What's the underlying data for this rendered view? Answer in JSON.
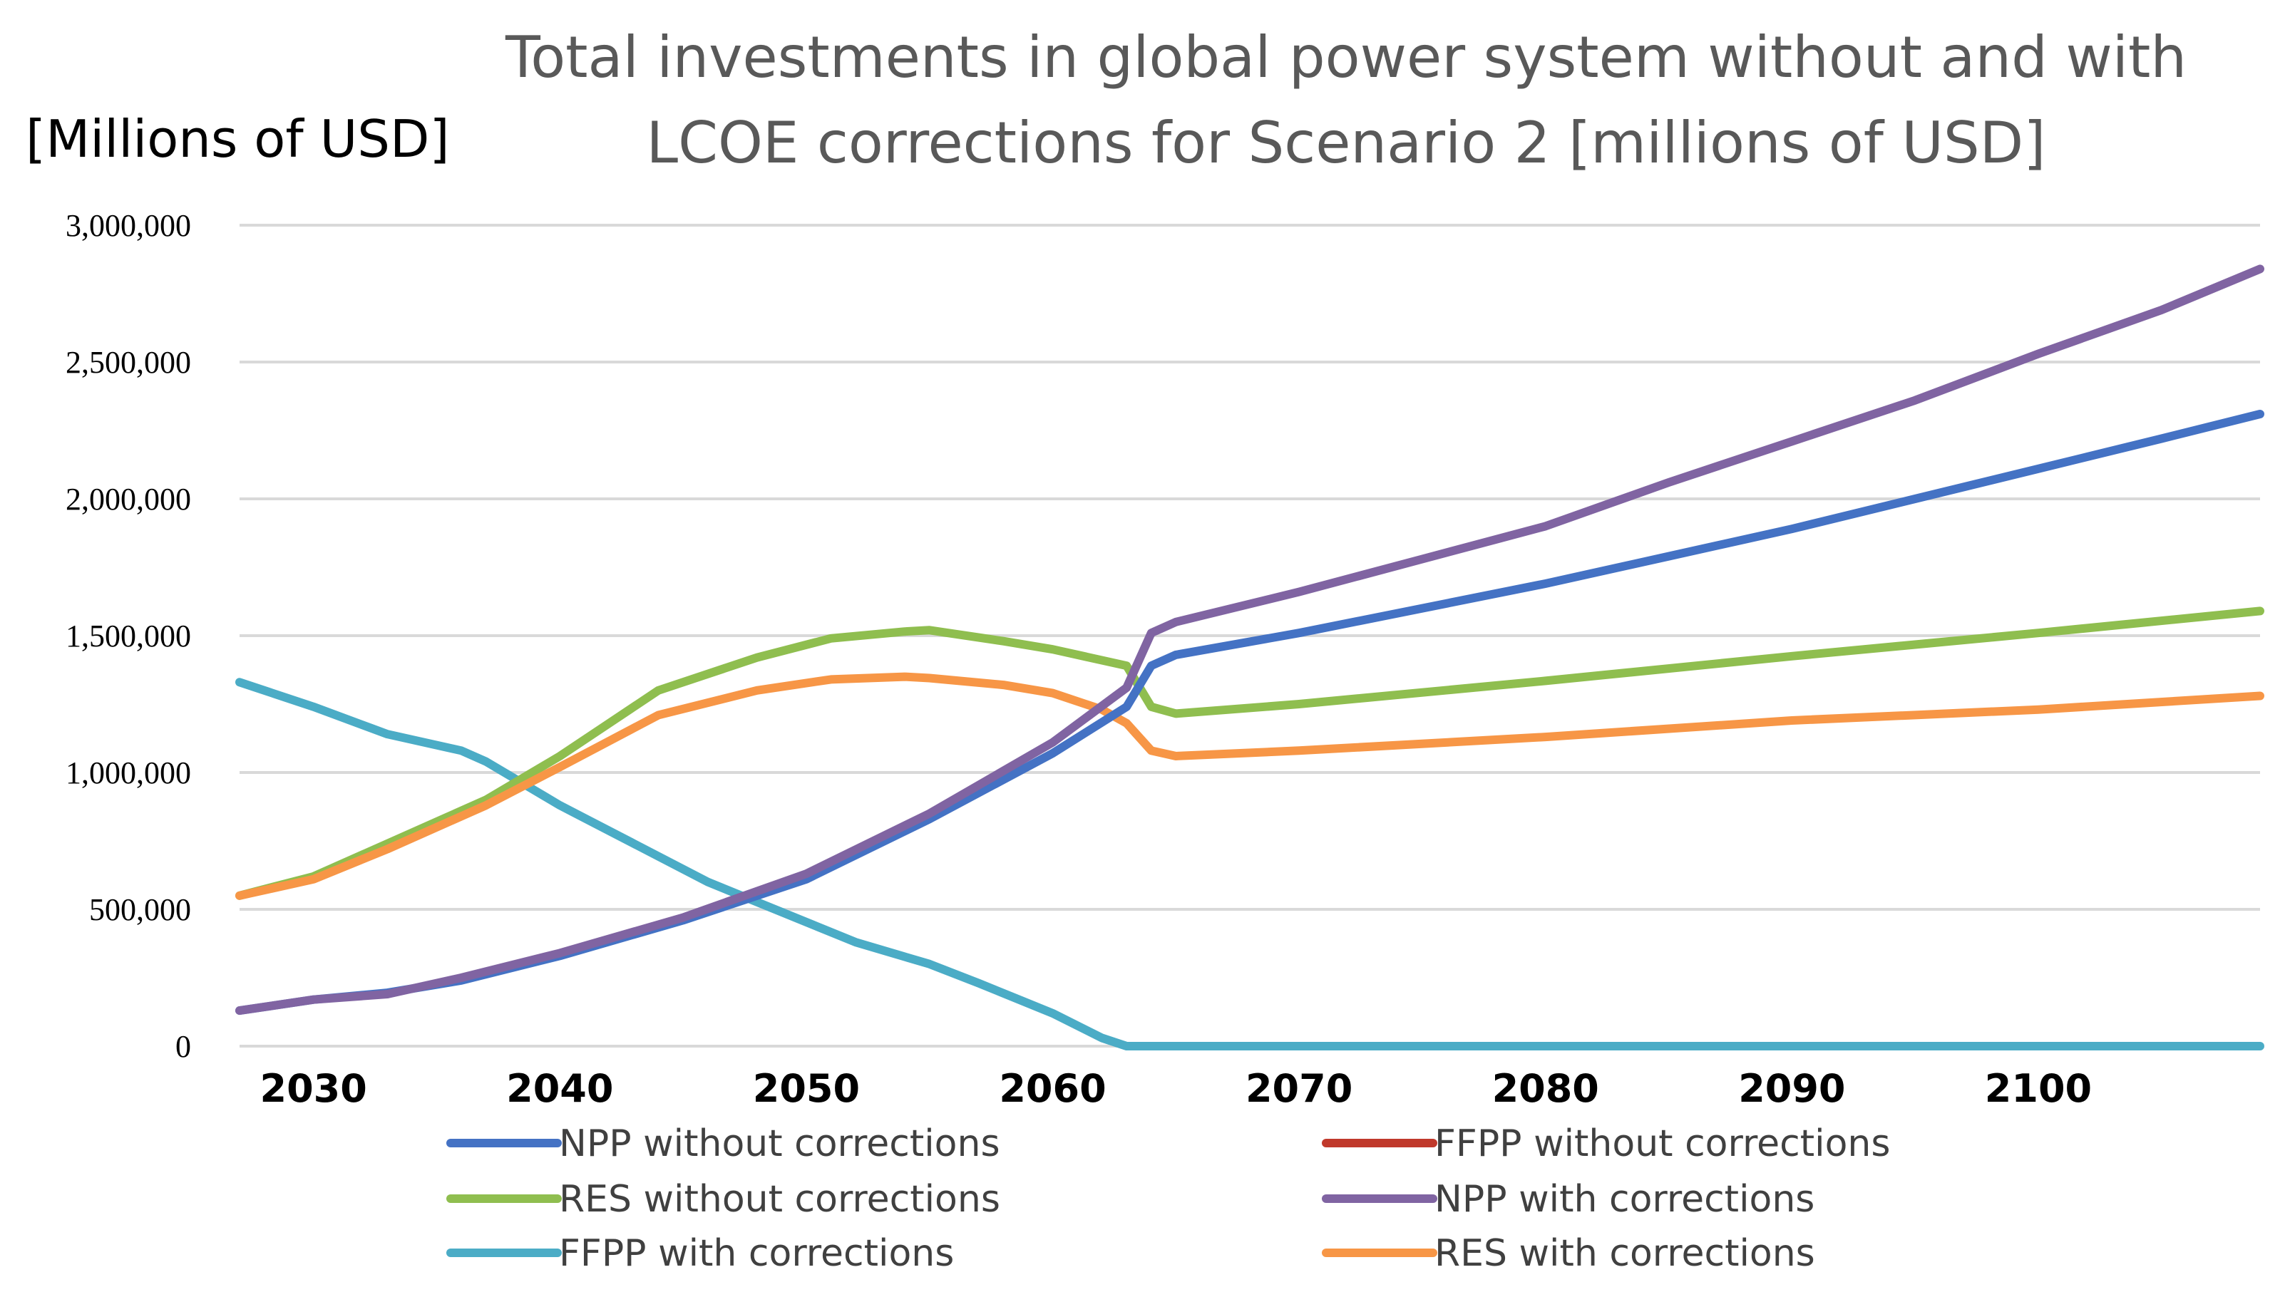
{
  "chart_data": {
    "type": "line",
    "title": "Total investments in global power system without and with LCOE corrections for Scenario 2 [millions of USD]",
    "title_lines": [
      "Total investments in global power system without and with",
      "LCOE corrections for Scenario 2 [millions of USD]"
    ],
    "unit_label": "[Millions of USD]",
    "xlabel": "",
    "ylabel": "[Millions of USD]",
    "xlim": [
      2027,
      2109
    ],
    "ylim": [
      0,
      3000000
    ],
    "x_ticks": [
      2030,
      2040,
      2050,
      2060,
      2070,
      2080,
      2090,
      2100
    ],
    "x_tick_labels": [
      "2030",
      "2040",
      "2050",
      "2060",
      "2070",
      "2080",
      "2090",
      "2100"
    ],
    "y_ticks": [
      0,
      500000,
      1000000,
      1500000,
      2000000,
      2500000,
      3000000
    ],
    "y_tick_labels": [
      "0",
      "500,000",
      "1,000,000",
      "1,500,000",
      "2,000,000",
      "2,500,000",
      "3,000,000"
    ],
    "grid": true,
    "legend_position": "bottom",
    "series": [
      {
        "name": "NPP without corrections",
        "color": "#4472c4",
        "points": [
          [
            2027,
            130000
          ],
          [
            2030,
            170000
          ],
          [
            2033,
            195000
          ],
          [
            2036,
            240000
          ],
          [
            2040,
            330000
          ],
          [
            2045,
            460000
          ],
          [
            2050,
            610000
          ],
          [
            2055,
            830000
          ],
          [
            2060,
            1070000
          ],
          [
            2063,
            1240000
          ],
          [
            2064,
            1390000
          ],
          [
            2065,
            1430000
          ],
          [
            2070,
            1510000
          ],
          [
            2075,
            1600000
          ],
          [
            2080,
            1690000
          ],
          [
            2085,
            1790000
          ],
          [
            2090,
            1890000
          ],
          [
            2095,
            2000000
          ],
          [
            2100,
            2110000
          ],
          [
            2105,
            2220000
          ],
          [
            2109,
            2310000
          ]
        ]
      },
      {
        "name": "FFPP without corrections",
        "color": "#c0392b",
        "points": []
      },
      {
        "name": "RES without corrections",
        "color": "#8fbe4f",
        "points": [
          [
            2027,
            550000
          ],
          [
            2030,
            620000
          ],
          [
            2033,
            740000
          ],
          [
            2037,
            900000
          ],
          [
            2040,
            1060000
          ],
          [
            2044,
            1300000
          ],
          [
            2048,
            1420000
          ],
          [
            2051,
            1490000
          ],
          [
            2054,
            1515000
          ],
          [
            2055,
            1520000
          ],
          [
            2058,
            1480000
          ],
          [
            2060,
            1450000
          ],
          [
            2063,
            1390000
          ],
          [
            2064,
            1240000
          ],
          [
            2065,
            1215000
          ],
          [
            2070,
            1250000
          ],
          [
            2080,
            1335000
          ],
          [
            2090,
            1425000
          ],
          [
            2100,
            1510000
          ],
          [
            2109,
            1590000
          ]
        ]
      },
      {
        "name": "NPP with corrections",
        "color": "#8064a2",
        "points": [
          [
            2027,
            130000
          ],
          [
            2030,
            170000
          ],
          [
            2033,
            190000
          ],
          [
            2036,
            250000
          ],
          [
            2040,
            340000
          ],
          [
            2045,
            470000
          ],
          [
            2050,
            630000
          ],
          [
            2055,
            850000
          ],
          [
            2060,
            1110000
          ],
          [
            2063,
            1310000
          ],
          [
            2064,
            1510000
          ],
          [
            2065,
            1550000
          ],
          [
            2070,
            1660000
          ],
          [
            2075,
            1780000
          ],
          [
            2080,
            1900000
          ],
          [
            2085,
            2060000
          ],
          [
            2090,
            2210000
          ],
          [
            2095,
            2360000
          ],
          [
            2100,
            2530000
          ],
          [
            2105,
            2690000
          ],
          [
            2109,
            2840000
          ]
        ]
      },
      {
        "name": "FFPP with corrections",
        "color": "#4bacc6",
        "points": [
          [
            2027,
            1330000
          ],
          [
            2030,
            1240000
          ],
          [
            2033,
            1140000
          ],
          [
            2036,
            1080000
          ],
          [
            2037,
            1040000
          ],
          [
            2040,
            880000
          ],
          [
            2043,
            740000
          ],
          [
            2046,
            600000
          ],
          [
            2049,
            490000
          ],
          [
            2052,
            380000
          ],
          [
            2055,
            300000
          ],
          [
            2057,
            230000
          ],
          [
            2060,
            120000
          ],
          [
            2062,
            30000
          ],
          [
            2063,
            0
          ],
          [
            2109,
            0
          ]
        ]
      },
      {
        "name": "RES with corrections",
        "color": "#f79646",
        "points": [
          [
            2027,
            550000
          ],
          [
            2030,
            610000
          ],
          [
            2033,
            720000
          ],
          [
            2037,
            880000
          ],
          [
            2040,
            1020000
          ],
          [
            2044,
            1210000
          ],
          [
            2048,
            1300000
          ],
          [
            2051,
            1340000
          ],
          [
            2054,
            1350000
          ],
          [
            2055,
            1345000
          ],
          [
            2058,
            1320000
          ],
          [
            2060,
            1290000
          ],
          [
            2062,
            1230000
          ],
          [
            2063,
            1180000
          ],
          [
            2064,
            1080000
          ],
          [
            2065,
            1060000
          ],
          [
            2070,
            1080000
          ],
          [
            2080,
            1130000
          ],
          [
            2090,
            1190000
          ],
          [
            2100,
            1230000
          ],
          [
            2109,
            1280000
          ]
        ]
      }
    ]
  }
}
